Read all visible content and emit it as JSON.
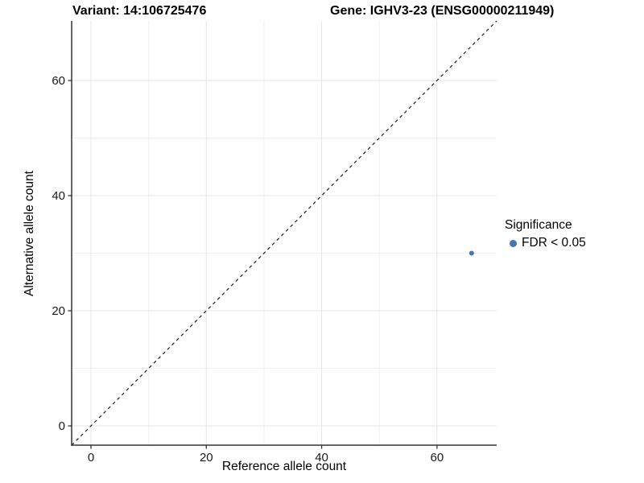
{
  "header": {
    "title_left": "Variant: 14:106725476",
    "title_right": "Gene: IGHV3-23 (ENSG00000211949)"
  },
  "chart_data": {
    "type": "scatter",
    "title": "Variant: 14:106725476 | Gene: IGHV3-23 (ENSG00000211949)",
    "xlabel": "Reference allele count",
    "ylabel": "Alternative allele count",
    "xlim": [
      -3.35,
      70.35
    ],
    "ylim": [
      -3.35,
      70.35
    ],
    "x_ticks": [
      0,
      20,
      40,
      60
    ],
    "y_ticks": [
      0,
      20,
      40,
      60
    ],
    "x_minor_ticks": [
      10,
      30,
      50
    ],
    "y_minor_ticks": [
      10,
      30,
      50
    ],
    "grid": "major+minor",
    "reference_line": {
      "type": "identity",
      "linetype": "dashed"
    },
    "series": [
      {
        "name": "FDR < 0.05",
        "color": "#4575b4",
        "points": [
          {
            "x": 66,
            "y": 30
          }
        ]
      }
    ],
    "legend": {
      "title": "Significance",
      "position": "right",
      "entries": [
        {
          "label": "FDR < 0.05",
          "color": "#4575b4"
        }
      ]
    },
    "style": {
      "background": "#ffffff",
      "grid_major_color": "#e4e4e4",
      "grid_minor_color": "#f0f0f0",
      "axis_color": "#333333",
      "dashed_line_color": "#1a1a1a",
      "point_color": "#4575b4",
      "text_color": "#000000"
    }
  }
}
